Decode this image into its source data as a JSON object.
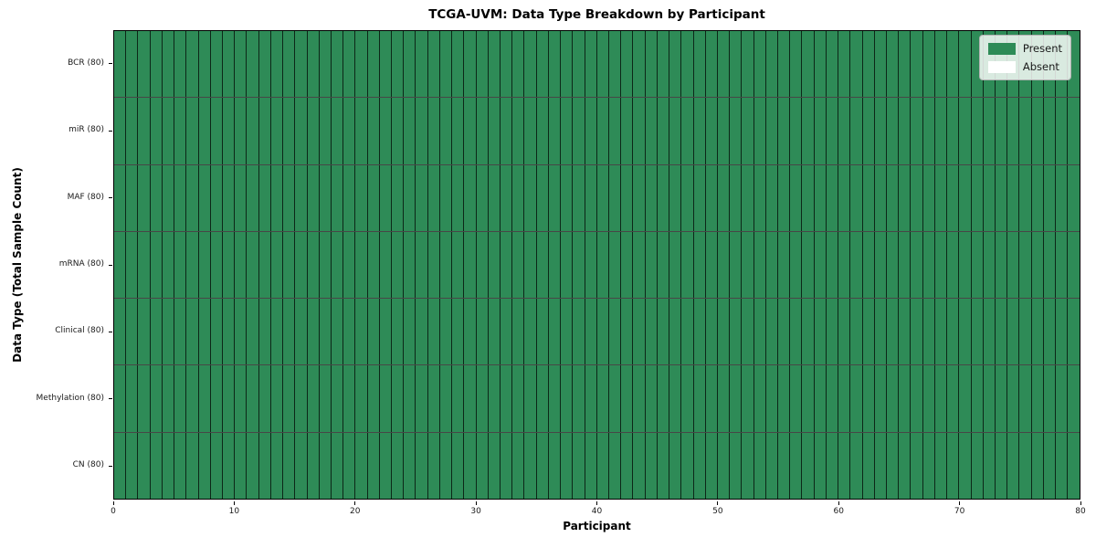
{
  "chart_data": {
    "type": "heatmap",
    "title": "TCGA-UVM: Data Type Breakdown by Participant",
    "xlabel": "Participant",
    "ylabel": "Data Type (Total Sample Count)",
    "n_participants": 80,
    "x_ticks": [
      0,
      10,
      20,
      30,
      40,
      50,
      60,
      70,
      80
    ],
    "xlim": [
      0,
      80
    ],
    "rows": [
      {
        "label": "BCR (80)",
        "present": 80
      },
      {
        "label": "miR (80)",
        "present": 80
      },
      {
        "label": "MAF (80)",
        "present": 80
      },
      {
        "label": "mRNA (80)",
        "present": 80
      },
      {
        "label": "Clinical (80)",
        "present": 80
      },
      {
        "label": "Methylation (80)",
        "present": 80
      },
      {
        "label": "CN (80)",
        "present": 80
      }
    ],
    "legend": [
      {
        "label": "Present",
        "color": "#2e8b57"
      },
      {
        "label": "Absent",
        "color": "#ffffff"
      }
    ],
    "colors": {
      "present": "#2e8b57",
      "absent": "#ffffff"
    },
    "legend_position": "upper right",
    "grid": "cell-borders"
  }
}
